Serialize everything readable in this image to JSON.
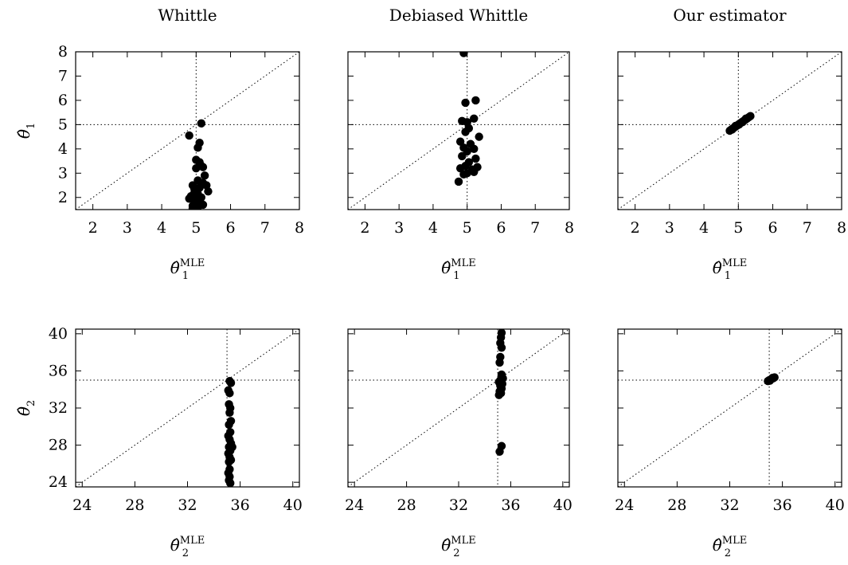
{
  "chart_data": [
    {
      "type": "scatter",
      "title": "Whittle",
      "xlabel": {
        "base": "θ̂",
        "sub": "1",
        "sup": "MLE"
      },
      "ylabel": {
        "base": "θ̂",
        "sub": "1"
      },
      "xlim": [
        1.5,
        8
      ],
      "ylim": [
        1.5,
        8
      ],
      "xticks": [
        "2",
        "3",
        "4",
        "5",
        "6",
        "7",
        "8"
      ],
      "yticks": [
        "2",
        "3",
        "4",
        "5",
        "6",
        "7",
        "8"
      ],
      "reference_lines": {
        "vertical": 5,
        "horizontal": 5,
        "diagonal": true
      },
      "points": [
        [
          4.8,
          4.55
        ],
        [
          5.15,
          5.05
        ],
        [
          5.1,
          4.25
        ],
        [
          5.05,
          4.05
        ],
        [
          5.0,
          3.55
        ],
        [
          5.1,
          3.45
        ],
        [
          5.15,
          3.3
        ],
        [
          5.0,
          3.2
        ],
        [
          5.2,
          3.25
        ],
        [
          5.25,
          2.9
        ],
        [
          5.05,
          2.7
        ],
        [
          5.2,
          2.6
        ],
        [
          4.9,
          2.5
        ],
        [
          5.3,
          2.5
        ],
        [
          5.1,
          2.4
        ],
        [
          5.35,
          2.25
        ],
        [
          4.95,
          2.2
        ],
        [
          5.05,
          2.15
        ],
        [
          4.85,
          2.05
        ],
        [
          5.15,
          2.0
        ],
        [
          4.8,
          1.95
        ],
        [
          5.0,
          1.9
        ],
        [
          5.1,
          1.85
        ],
        [
          4.95,
          1.8
        ],
        [
          5.2,
          1.7
        ],
        [
          4.9,
          1.65
        ],
        [
          5.05,
          1.6
        ],
        [
          4.9,
          1.55
        ],
        [
          5.1,
          2.0
        ],
        [
          4.95,
          2.35
        ]
      ]
    },
    {
      "type": "scatter",
      "title": "Debiased Whittle",
      "xlabel": {
        "base": "θ̂",
        "sub": "1",
        "sup": "MLE"
      },
      "ylabel": null,
      "xlim": [
        1.5,
        8
      ],
      "ylim": [
        1.5,
        8
      ],
      "xticks": [
        "2",
        "3",
        "4",
        "5",
        "6",
        "7",
        "8"
      ],
      "yticks": [],
      "reference_lines": {
        "vertical": 5,
        "horizontal": 5,
        "diagonal": true
      },
      "points": [
        [
          4.9,
          7.95
        ],
        [
          4.95,
          5.9
        ],
        [
          5.25,
          6.0
        ],
        [
          4.85,
          5.15
        ],
        [
          5.0,
          5.1
        ],
        [
          5.2,
          5.25
        ],
        [
          5.05,
          4.85
        ],
        [
          4.95,
          4.7
        ],
        [
          5.35,
          4.5
        ],
        [
          4.8,
          4.3
        ],
        [
          5.1,
          4.2
        ],
        [
          4.9,
          4.05
        ],
        [
          5.2,
          4.0
        ],
        [
          5.0,
          3.9
        ],
        [
          4.85,
          3.7
        ],
        [
          5.25,
          3.6
        ],
        [
          5.05,
          3.45
        ],
        [
          4.95,
          3.3
        ],
        [
          5.3,
          3.25
        ],
        [
          4.8,
          3.2
        ],
        [
          5.15,
          3.15
        ],
        [
          5.0,
          3.0
        ],
        [
          5.2,
          3.05
        ],
        [
          4.9,
          2.95
        ],
        [
          4.75,
          2.65
        ]
      ]
    },
    {
      "type": "scatter",
      "title": "Our estimator",
      "xlabel": {
        "base": "θ̂",
        "sub": "1",
        "sup": "MLE"
      },
      "ylabel": null,
      "xlim": [
        1.5,
        8
      ],
      "ylim": [
        1.5,
        8
      ],
      "xticks": [
        "2",
        "3",
        "4",
        "5",
        "6",
        "7",
        "8"
      ],
      "yticks": [],
      "reference_lines": {
        "vertical": 5,
        "horizontal": 5,
        "diagonal": true
      },
      "points": [
        [
          4.75,
          4.75
        ],
        [
          4.8,
          4.8
        ],
        [
          4.85,
          4.85
        ],
        [
          4.9,
          4.9
        ],
        [
          4.95,
          4.95
        ],
        [
          5.0,
          5.0
        ],
        [
          5.05,
          5.05
        ],
        [
          5.1,
          5.1
        ],
        [
          5.15,
          5.15
        ],
        [
          5.2,
          5.2
        ],
        [
          5.25,
          5.25
        ],
        [
          5.3,
          5.3
        ],
        [
          5.35,
          5.35
        ],
        [
          4.82,
          4.8
        ],
        [
          5.12,
          5.1
        ],
        [
          5.22,
          5.25
        ],
        [
          4.92,
          4.95
        ],
        [
          5.02,
          5.0
        ]
      ]
    },
    {
      "type": "scatter",
      "title": "",
      "xlabel": {
        "base": "θ̂",
        "sub": "2",
        "sup": "MLE"
      },
      "ylabel": {
        "base": "θ̂",
        "sub": "2"
      },
      "xlim": [
        23.5,
        40.5
      ],
      "ylim": [
        23.5,
        40.5
      ],
      "xticks": [
        "24",
        "28",
        "32",
        "36",
        "40"
      ],
      "yticks": [
        "24",
        "28",
        "32",
        "36",
        "40"
      ],
      "reference_lines": {
        "vertical": 35,
        "horizontal": 35,
        "diagonal": true
      },
      "points": [
        [
          35.2,
          34.9
        ],
        [
          35.3,
          34.7
        ],
        [
          35.1,
          33.9
        ],
        [
          35.2,
          33.6
        ],
        [
          35.15,
          32.4
        ],
        [
          35.25,
          32.0
        ],
        [
          35.2,
          31.5
        ],
        [
          35.3,
          30.6
        ],
        [
          35.15,
          30.2
        ],
        [
          35.25,
          29.4
        ],
        [
          35.1,
          29.0
        ],
        [
          35.2,
          28.6
        ],
        [
          35.3,
          28.2
        ],
        [
          35.15,
          27.8
        ],
        [
          35.25,
          27.4
        ],
        [
          35.4,
          27.8
        ],
        [
          35.1,
          27.1
        ],
        [
          35.2,
          26.7
        ],
        [
          35.3,
          26.4
        ],
        [
          35.15,
          26.2
        ],
        [
          35.2,
          25.4
        ],
        [
          35.1,
          25.0
        ],
        [
          35.2,
          24.6
        ],
        [
          35.15,
          24.2
        ],
        [
          35.25,
          23.9
        ]
      ]
    },
    {
      "type": "scatter",
      "title": "",
      "xlabel": {
        "base": "θ̂",
        "sub": "2",
        "sup": "MLE"
      },
      "ylabel": null,
      "xlim": [
        23.5,
        40.5
      ],
      "ylim": [
        23.5,
        40.5
      ],
      "xticks": [
        "24",
        "28",
        "32",
        "36",
        "40"
      ],
      "yticks": [],
      "reference_lines": {
        "vertical": 35,
        "horizontal": 35,
        "diagonal": true
      },
      "points": [
        [
          35.3,
          40.1
        ],
        [
          35.25,
          39.6
        ],
        [
          35.2,
          39.0
        ],
        [
          35.3,
          38.5
        ],
        [
          35.2,
          37.5
        ],
        [
          35.15,
          36.9
        ],
        [
          35.3,
          35.6
        ],
        [
          35.4,
          35.2
        ],
        [
          35.2,
          35.0
        ],
        [
          35.1,
          34.8
        ],
        [
          35.35,
          34.6
        ],
        [
          35.2,
          34.4
        ],
        [
          35.3,
          34.1
        ],
        [
          35.15,
          33.8
        ],
        [
          35.25,
          33.6
        ],
        [
          35.1,
          33.4
        ],
        [
          35.3,
          27.9
        ],
        [
          35.15,
          27.3
        ]
      ]
    },
    {
      "type": "scatter",
      "title": "",
      "xlabel": {
        "base": "θ̂",
        "sub": "2",
        "sup": "MLE"
      },
      "ylabel": null,
      "xlim": [
        23.5,
        40.5
      ],
      "ylim": [
        23.5,
        40.5
      ],
      "xticks": [
        "24",
        "28",
        "32",
        "36",
        "40"
      ],
      "yticks": [],
      "reference_lines": {
        "vertical": 35,
        "horizontal": 35,
        "diagonal": true
      },
      "points": [
        [
          34.9,
          34.9
        ],
        [
          35.0,
          35.0
        ],
        [
          35.1,
          35.05
        ],
        [
          35.2,
          35.15
        ],
        [
          35.3,
          35.2
        ],
        [
          35.4,
          35.3
        ],
        [
          35.05,
          34.95
        ],
        [
          35.25,
          35.25
        ]
      ]
    }
  ]
}
